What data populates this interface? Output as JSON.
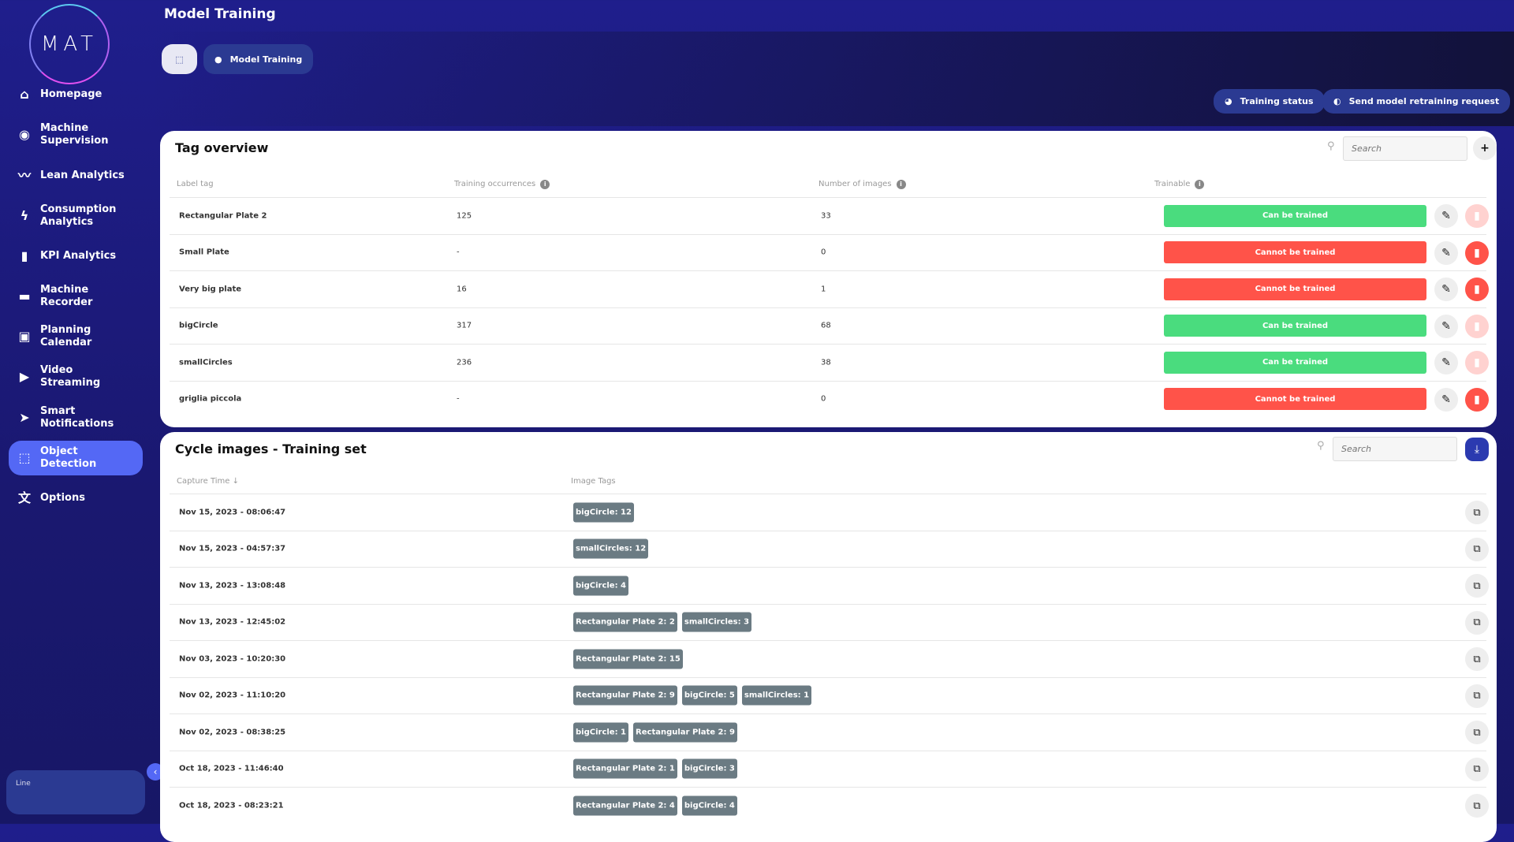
{
  "logo": "MAT",
  "sidebar": {
    "items": [
      {
        "label": "Homepage",
        "icon": "home-icon",
        "glyph": "⌂"
      },
      {
        "label": "Machine Supervision",
        "icon": "eye-icon",
        "glyph": "◉"
      },
      {
        "label": "Lean Analytics",
        "icon": "trend-icon",
        "glyph": "〰"
      },
      {
        "label": "Consumption Analytics",
        "icon": "bolt-icon",
        "glyph": "ϟ"
      },
      {
        "label": "KPI Analytics",
        "icon": "bar-chart-icon",
        "glyph": "▮"
      },
      {
        "label": "Machine Recorder",
        "icon": "recorder-icon",
        "glyph": "▬"
      },
      {
        "label": "Planning Calendar",
        "icon": "calendar-icon",
        "glyph": "▣"
      },
      {
        "label": "Video Streaming",
        "icon": "play-icon",
        "glyph": "▶"
      },
      {
        "label": "Smart Notifications",
        "icon": "send-icon",
        "glyph": "➤"
      },
      {
        "label": "Object Detection",
        "icon": "object-detection-icon",
        "glyph": "⬚",
        "active": true
      },
      {
        "label": "Options",
        "icon": "translate-icon",
        "glyph": "文"
      }
    ],
    "line_label": "Line"
  },
  "header": {
    "title": "Model Training",
    "breadcrumb": "Model Training",
    "training_status": "Training status",
    "retrain": "Send model retraining request"
  },
  "tag_overview": {
    "title": "Tag overview",
    "search_placeholder": "Search",
    "columns": [
      "Label tag",
      "Training occurrences",
      "Number of images",
      "Trainable"
    ],
    "rows": [
      {
        "label": "Rectangular Plate 2",
        "occ": "125",
        "images": "33",
        "status": "Can be trained",
        "trainable": true
      },
      {
        "label": "Small Plate",
        "occ": "-",
        "images": "0",
        "status": "Cannot be trained",
        "trainable": false
      },
      {
        "label": "Very big plate",
        "occ": "16",
        "images": "1",
        "status": "Cannot be trained",
        "trainable": false
      },
      {
        "label": "bigCircle",
        "occ": "317",
        "images": "68",
        "status": "Can be trained",
        "trainable": true
      },
      {
        "label": "smallCircles",
        "occ": "236",
        "images": "38",
        "status": "Can be trained",
        "trainable": true
      },
      {
        "label": "griglia piccola",
        "occ": "-",
        "images": "0",
        "status": "Cannot be trained",
        "trainable": false
      }
    ]
  },
  "cycle_images": {
    "title": "Cycle images - Training set",
    "search_placeholder": "Search",
    "columns": [
      "Capture Time ↓",
      "Image Tags"
    ],
    "rows": [
      {
        "time": "Nov 15, 2023 - 08:06:47",
        "tags": [
          "bigCircle: 12"
        ]
      },
      {
        "time": "Nov 15, 2023 - 04:57:37",
        "tags": [
          "smallCircles: 12"
        ]
      },
      {
        "time": "Nov 13, 2023 - 13:08:48",
        "tags": [
          "bigCircle: 4"
        ]
      },
      {
        "time": "Nov 13, 2023 - 12:45:02",
        "tags": [
          "Rectangular Plate 2: 2",
          "smallCircles: 3"
        ]
      },
      {
        "time": "Nov 03, 2023 - 10:20:30",
        "tags": [
          "Rectangular Plate 2: 15"
        ]
      },
      {
        "time": "Nov 02, 2023 - 11:10:20",
        "tags": [
          "Rectangular Plate 2: 9",
          "bigCircle: 5",
          "smallCircles: 1"
        ]
      },
      {
        "time": "Nov 02, 2023 - 08:38:25",
        "tags": [
          "bigCircle: 1",
          "Rectangular Plate 2: 9"
        ]
      },
      {
        "time": "Oct 18, 2023 - 11:46:40",
        "tags": [
          "Rectangular Plate 2: 1",
          "bigCircle: 3"
        ]
      },
      {
        "time": "Oct 18, 2023 - 08:23:21",
        "tags": [
          "Rectangular Plate 2: 4",
          "bigCircle: 4"
        ]
      }
    ]
  },
  "colors": {
    "green": "#4adc7e",
    "red": "#ff5349",
    "red_faded": "#ffd2d0",
    "accent": "#5468f5",
    "pill": "#2b3a92"
  }
}
